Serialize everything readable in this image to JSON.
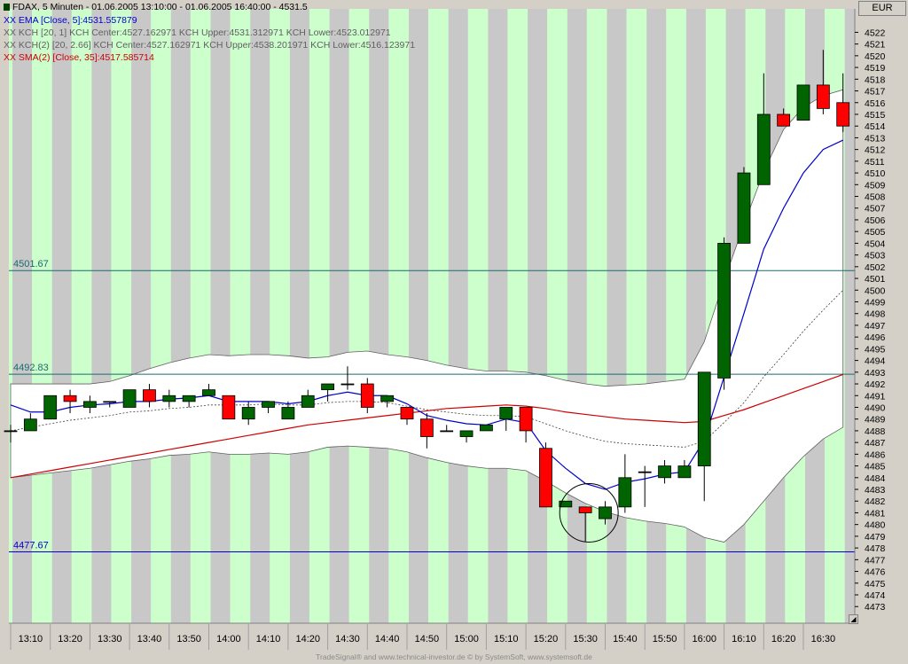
{
  "header": {
    "instrument": "FDAX, 5 Minuten - 01.06.2005 13:10:00 - 01.06.2005 16:40:00 - 4531.5",
    "ema": "XX EMA [Close, 5]:4531.557879",
    "kch1": "XX KCH [20, 1] KCH Center:4527.162971 KCH Upper:4531.312971 KCH Lower:4523.012971",
    "kch2": "XX KCH(2) [20, 2.66] KCH Center:4527.162971 KCH Upper:4538.201971 KCH Lower:4516.123971",
    "sma": "XX SMA(2) [Close, 35]:4517.585714"
  },
  "currency": "EUR",
  "footer": "TradeSignal® and www.technical-investor.de © by SystemSoft, www.systemsoft.de",
  "colors": {
    "up": "#006400",
    "down": "#ff0000",
    "band_green": "#ccffcc",
    "band_gray": "#c8c8c8",
    "ema": "#0000cc",
    "sma": "#cc0000",
    "hline_teal": "#1a6b6b",
    "hline_blue": "#0000cc"
  },
  "chart_data": {
    "type": "candlestick",
    "y_range": [
      4472,
      4524
    ],
    "y_ticks": [
      4473,
      4474,
      4475,
      4476,
      4477,
      4478,
      4479,
      4480,
      4481,
      4482,
      4483,
      4484,
      4485,
      4486,
      4487,
      4488,
      4489,
      4490,
      4491,
      4492,
      4493,
      4494,
      4495,
      4496,
      4497,
      4498,
      4499,
      4500,
      4501,
      4502,
      4503,
      4504,
      4505,
      4506,
      4507,
      4508,
      4509,
      4510,
      4511,
      4512,
      4513,
      4514,
      4515,
      4516,
      4517,
      4518,
      4519,
      4520,
      4521,
      4522
    ],
    "x_labels": [
      "13:10",
      "13:20",
      "13:30",
      "13:40",
      "13:50",
      "14:00",
      "14:10",
      "14:20",
      "14:30",
      "14:40",
      "14:50",
      "15:00",
      "15:10",
      "15:20",
      "15:30",
      "15:40",
      "15:50",
      "16:00",
      "16:10",
      "16:20",
      "16:30"
    ],
    "candles": [
      {
        "o": 4488.0,
        "h": 4488.5,
        "l": 4487.0,
        "c": 4488.0
      },
      {
        "o": 4488.0,
        "h": 4489.5,
        "l": 4488.0,
        "c": 4489.0
      },
      {
        "o": 4489.0,
        "h": 4491.0,
        "l": 4489.0,
        "c": 4491.0
      },
      {
        "o": 4491.0,
        "h": 4491.5,
        "l": 4489.5,
        "c": 4490.5
      },
      {
        "o": 4490.0,
        "h": 4491.0,
        "l": 4489.5,
        "c": 4490.5
      },
      {
        "o": 4490.5,
        "h": 4490.5,
        "l": 4490.0,
        "c": 4490.5
      },
      {
        "o": 4490.0,
        "h": 4491.5,
        "l": 4490.0,
        "c": 4491.5
      },
      {
        "o": 4491.5,
        "h": 4492.0,
        "l": 4490.0,
        "c": 4490.5
      },
      {
        "o": 4490.5,
        "h": 4491.5,
        "l": 4490.0,
        "c": 4491.0
      },
      {
        "o": 4490.5,
        "h": 4491.0,
        "l": 4490.0,
        "c": 4491.0
      },
      {
        "o": 4491.0,
        "h": 4492.0,
        "l": 4491.0,
        "c": 4491.5
      },
      {
        "o": 4491.0,
        "h": 4491.0,
        "l": 4489.0,
        "c": 4489.0
      },
      {
        "o": 4489.0,
        "h": 4490.5,
        "l": 4488.5,
        "c": 4490.0
      },
      {
        "o": 4490.0,
        "h": 4490.5,
        "l": 4489.5,
        "c": 4490.5
      },
      {
        "o": 4489.0,
        "h": 4490.5,
        "l": 4489.0,
        "c": 4490.0
      },
      {
        "o": 4490.0,
        "h": 4491.5,
        "l": 4490.0,
        "c": 4491.0
      },
      {
        "o": 4491.5,
        "h": 4492.0,
        "l": 4490.5,
        "c": 4492.0
      },
      {
        "o": 4492.0,
        "h": 4493.5,
        "l": 4491.5,
        "c": 4492.0
      },
      {
        "o": 4492.0,
        "h": 4492.5,
        "l": 4489.5,
        "c": 4490.0
      },
      {
        "o": 4490.5,
        "h": 4491.0,
        "l": 4490.0,
        "c": 4491.0
      },
      {
        "o": 4490.0,
        "h": 4490.0,
        "l": 4488.5,
        "c": 4489.0
      },
      {
        "o": 4489.0,
        "h": 4489.5,
        "l": 4486.5,
        "c": 4487.5
      },
      {
        "o": 4488.0,
        "h": 4488.5,
        "l": 4488.0,
        "c": 4488.0
      },
      {
        "o": 4487.5,
        "h": 4488.0,
        "l": 4487.0,
        "c": 4488.0
      },
      {
        "o": 4488.0,
        "h": 4488.5,
        "l": 4488.0,
        "c": 4488.5
      },
      {
        "o": 4489.0,
        "h": 4490.0,
        "l": 4488.0,
        "c": 4490.0
      },
      {
        "o": 4490.0,
        "h": 4490.0,
        "l": 4487.0,
        "c": 4488.0
      },
      {
        "o": 4486.5,
        "h": 4487.0,
        "l": 4481.5,
        "c": 4481.5
      },
      {
        "o": 4481.5,
        "h": 4482.0,
        "l": 4481.5,
        "c": 4482.0
      },
      {
        "o": 4481.5,
        "h": 4481.5,
        "l": 4478.5,
        "c": 4481.0
      },
      {
        "o": 4480.5,
        "h": 4482.0,
        "l": 4480.0,
        "c": 4481.5
      },
      {
        "o": 4481.5,
        "h": 4486.0,
        "l": 4481.0,
        "c": 4484.0
      },
      {
        "o": 4484.5,
        "h": 4485.0,
        "l": 4481.5,
        "c": 4484.5
      },
      {
        "o": 4484.0,
        "h": 4485.5,
        "l": 4483.5,
        "c": 4485.0
      },
      {
        "o": 4484.0,
        "h": 4485.5,
        "l": 4484.0,
        "c": 4485.0
      },
      {
        "o": 4485.0,
        "h": 4492.5,
        "l": 4482.0,
        "c": 4493.0
      },
      {
        "o": 4492.5,
        "h": 4504.5,
        "l": 4491.5,
        "c": 4504.0
      },
      {
        "o": 4504.0,
        "h": 4510.5,
        "l": 4504.0,
        "c": 4510.0
      },
      {
        "o": 4509.0,
        "h": 4518.5,
        "l": 4509.0,
        "c": 4515.0
      },
      {
        "o": 4515.0,
        "h": 4515.5,
        "l": 4514.0,
        "c": 4514.0
      },
      {
        "o": 4514.5,
        "h": 4517.0,
        "l": 4514.5,
        "c": 4517.5
      },
      {
        "o": 4517.5,
        "h": 4520.5,
        "l": 4515.0,
        "c": 4515.5
      },
      {
        "o": 4516.0,
        "h": 4518.5,
        "l": 4513.5,
        "c": 4514.0
      }
    ],
    "series": [
      {
        "values": [
          4490.2,
          4489.6,
          4489.6,
          4490.0,
          4490.2,
          4490.3,
          4490.5,
          4490.5,
          4490.7,
          4490.8,
          4491.0,
          4490.5,
          4490.5,
          4490.5,
          4490.3,
          4490.5,
          4491.0,
          4491.3,
          4491.0,
          4491.0,
          4490.3,
          4489.3,
          4488.9,
          4488.6,
          4488.5,
          4489.0,
          4488.7,
          4486.3,
          4484.8,
          4483.5,
          4483.0,
          4483.6,
          4483.9,
          4484.3,
          4484.5,
          4487.2,
          4492.6,
          4498.0,
          4503.5,
          4507.0,
          4510.0,
          4512.0,
          4512.8
        ]
      },
      {
        "values": [
          4488.0,
          4488.3,
          4488.6,
          4488.9,
          4489.1,
          4489.3,
          4489.6,
          4489.7,
          4489.9,
          4490.0,
          4490.2,
          4490.2,
          4490.2,
          4490.3,
          4490.2,
          4490.2,
          4490.4,
          4490.5,
          4490.5,
          4490.4,
          4490.1,
          4489.8,
          4489.6,
          4489.4,
          4489.3,
          4489.3,
          4489.2,
          4488.6,
          4488.0,
          4487.5,
          4487.1,
          4486.9,
          4486.8,
          4486.7,
          4486.6,
          4487.1,
          4488.7,
          4490.4,
          4492.6,
          4494.5,
          4496.5,
          4498.3,
          4500.0
        ]
      },
      {
        "values": [
          4492.0,
          4492.0,
          4492.0,
          4492.0,
          4492.0,
          4492.2,
          4492.7,
          4493.3,
          4493.8,
          4494.2,
          4494.5,
          4494.4,
          4494.5,
          4494.5,
          4494.4,
          4494.2,
          4494.3,
          4494.7,
          4494.8,
          4494.5,
          4494.3,
          4494.0,
          4493.6,
          4493.3,
          4493.1,
          4493.1,
          4493.0,
          4492.7,
          4492.3,
          4492.0,
          4491.8,
          4491.9,
          4492.0,
          4492.2,
          4492.4,
          4495.6,
          4500.8,
          4505.6,
          4510.1,
          4513.7,
          4515.6,
          4516.6,
          4517.1
        ]
      },
      {
        "values": [
          4484.0,
          4484.2,
          4484.4,
          4484.6,
          4484.8,
          4485.1,
          4485.4,
          4485.6,
          4485.9,
          4486.0,
          4486.2,
          4486.0,
          4486.0,
          4486.1,
          4486.0,
          4486.2,
          4486.6,
          4486.7,
          4486.6,
          4486.5,
          4486.2,
          4485.7,
          4485.3,
          4485.0,
          4484.8,
          4484.8,
          4484.6,
          4483.7,
          4482.7,
          4481.8,
          4481.1,
          4480.6,
          4480.3,
          4480.1,
          4479.8,
          4478.9,
          4478.5,
          4480.0,
          4482.0,
          4484.0,
          4485.8,
          4487.3,
          4488.3
        ]
      },
      {
        "values": [
          4484.0,
          4484.3,
          4484.6,
          4484.9,
          4485.2,
          4485.5,
          4485.8,
          4486.1,
          4486.4,
          4486.7,
          4487.0,
          4487.3,
          4487.6,
          4487.9,
          4488.2,
          4488.5,
          4488.7,
          4488.9,
          4489.1,
          4489.3,
          4489.5,
          4489.7,
          4489.9,
          4490.0,
          4490.1,
          4490.2,
          4490.1,
          4489.9,
          4489.6,
          4489.4,
          4489.2,
          4489.0,
          4488.9,
          4488.8,
          4488.7,
          4488.8,
          4489.3,
          4489.8,
          4490.4,
          4491.0,
          4491.6,
          4492.2,
          4492.8
        ]
      }
    ],
    "reference_lines": [
      4501.67,
      4492.83,
      4477.67
    ],
    "reference_labels": [
      "4501.67",
      "4492.83",
      "4477.67"
    ],
    "axes": {
      "y_side": "right",
      "x_tick_interval_minutes": 10
    }
  }
}
